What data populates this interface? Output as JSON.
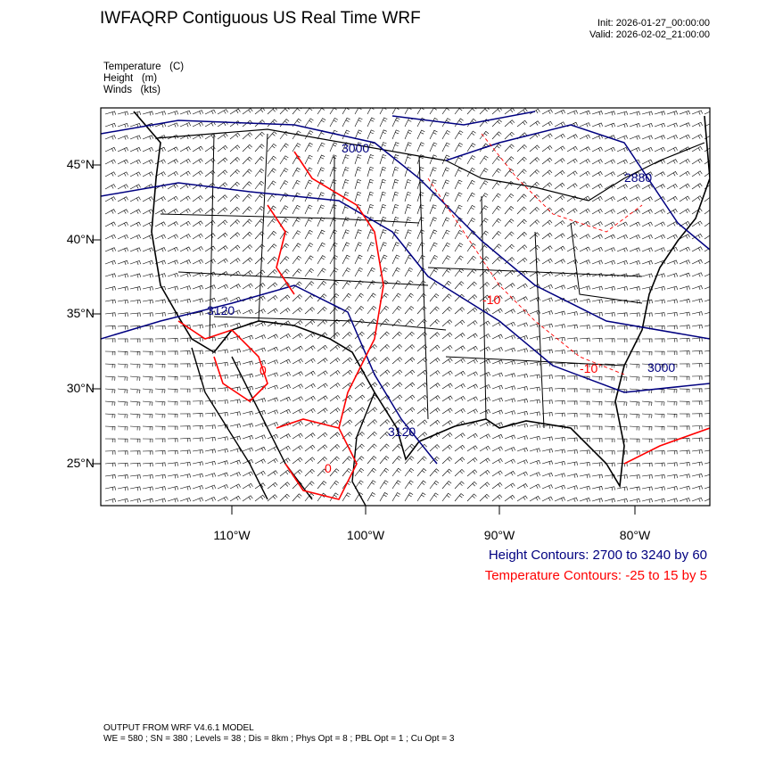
{
  "header": {
    "title": "IWFAQRP Contiguous US Real Time WRF",
    "init": "Init: 2026-01-27_00:00:00",
    "valid": "Valid: 2026-02-02_21:00:00"
  },
  "fields": [
    {
      "name": "Temperature",
      "unit": "(C)"
    },
    {
      "name": "Height",
      "unit": "(m)"
    },
    {
      "name": "Winds",
      "unit": "(kts)"
    }
  ],
  "map": {
    "lat_labels": [
      "45°N",
      "40°N",
      "35°N",
      "30°N",
      "25°N"
    ],
    "lon_labels": [
      "110°W",
      "100°W",
      "90°W",
      "80°W"
    ],
    "height_contour_labels": [
      "3000",
      "2880",
      "3120",
      "3000",
      "3120"
    ],
    "temperature_contour_labels": [
      "-10",
      "-10",
      "0",
      "0"
    ],
    "colors": {
      "height": "#000080",
      "temperature": "#ff0000",
      "boundaries": "#000000",
      "barbs": "#000000"
    }
  },
  "legend": {
    "height": "Height Contours: 2700 to 3240 by 60",
    "temperature": "Temperature Contours: -25 to 15 by 5"
  },
  "footer": {
    "line1": "OUTPUT FROM WRF V4.6.1 MODEL",
    "line2": "WE = 580 ; SN = 380 ; Levels = 38 ; Dis = 8km ; Phys Opt = 8 ; PBL Opt = 1 ; Cu Opt = 3"
  }
}
